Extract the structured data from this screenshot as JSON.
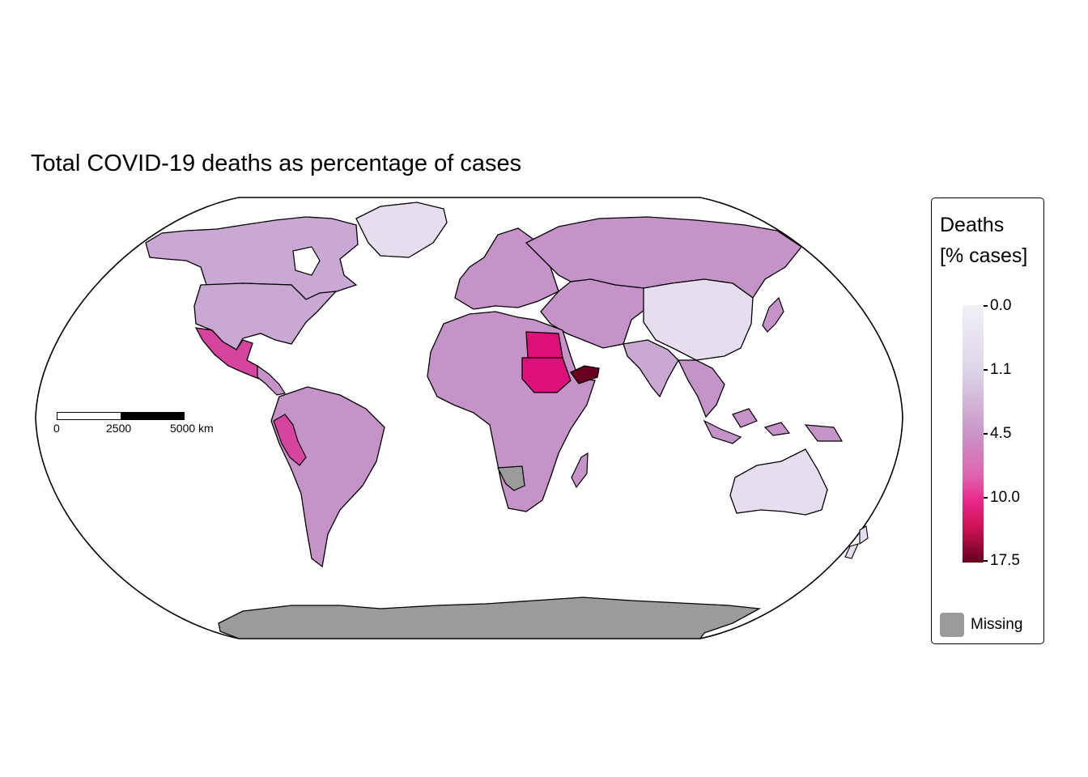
{
  "title": "Total COVID-19 deaths as percentage of cases",
  "legend": {
    "title_line1": "Deaths",
    "title_line2": "[% cases]",
    "ticks": [
      "0.0",
      "1.1",
      "4.5",
      "10.0",
      "17.5"
    ],
    "missing_label": "Missing",
    "colors": {
      "missing": "#9b9b9b",
      "scale": [
        "#f2f0f7",
        "#dcd4e8",
        "#c994c7",
        "#df65b0",
        "#e7298a",
        "#ce1256",
        "#67001f"
      ]
    }
  },
  "scalebar": {
    "labels": [
      "0",
      "2500",
      "5000 km"
    ]
  },
  "regions": [
    {
      "name": "Canada",
      "color": "#c9a8d3"
    },
    {
      "name": "United States",
      "color": "#c9a8d3"
    },
    {
      "name": "Greenland",
      "color": "#e6deee"
    },
    {
      "name": "Mexico",
      "color": "#d6449f"
    },
    {
      "name": "South America",
      "color": "#c593c8"
    },
    {
      "name": "Peru",
      "color": "#d6449f"
    },
    {
      "name": "Russia",
      "color": "#c593c8"
    },
    {
      "name": "Europe",
      "color": "#c593c8"
    },
    {
      "name": "China",
      "color": "#e6deee"
    },
    {
      "name": "India",
      "color": "#c9a8d3"
    },
    {
      "name": "Southeast Asia",
      "color": "#c593c8"
    },
    {
      "name": "Indonesia",
      "color": "#c593c8"
    },
    {
      "name": "Australia",
      "color": "#e6deee"
    },
    {
      "name": "Africa",
      "color": "#c593c8"
    },
    {
      "name": "Egypt",
      "color": "#dd0f7a"
    },
    {
      "name": "Sudan",
      "color": "#dd0f7a"
    },
    {
      "name": "Yemen",
      "color": "#6a0020"
    },
    {
      "name": "Namibia",
      "color": "#9b9b9b"
    },
    {
      "name": "Antarctica",
      "color": "#9b9b9b"
    }
  ]
}
